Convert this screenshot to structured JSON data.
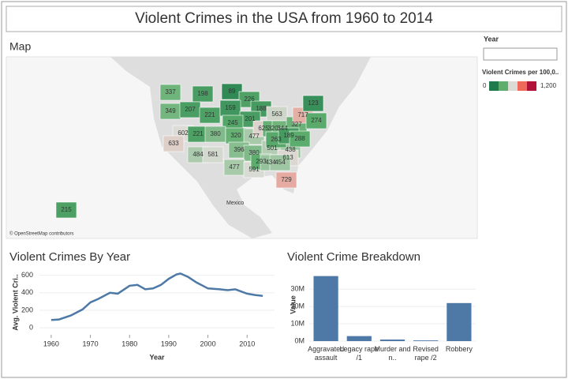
{
  "title": "Violent Crimes in the USA from 1960 to 2014",
  "map": {
    "title": "Map",
    "credit": "© OpenStreetMap contributors",
    "place_label": "Mexico",
    "state_values": [
      337,
      198,
      89,
      226,
      188,
      349,
      207,
      221,
      159,
      201,
      563,
      245,
      602,
      221,
      380,
      320,
      477,
      633,
      484,
      581,
      396,
      380,
      501,
      438,
      477,
      591,
      613,
      293,
      434,
      454,
      729,
      625,
      320,
      344,
      327,
      263,
      189,
      717,
      123,
      274,
      288,
      215
    ]
  },
  "filter": {
    "label": "Year"
  },
  "legend": {
    "title": "Violent Crimes per 100,0..",
    "min": 0,
    "max": {
      "value": 1200,
      "label": "1,200"
    },
    "colors": [
      "#1d7b4c",
      "#5fae6e",
      "#dcdcd6",
      "#f06a5c",
      "#b1123a"
    ]
  },
  "chart_data": [
    {
      "type": "line",
      "title": "Violent Crimes By Year",
      "x_label": "Year",
      "y_label": "Avg. Violent Cri..",
      "x": [
        1960,
        1962,
        1965,
        1968,
        1970,
        1972,
        1975,
        1977,
        1980,
        1982,
        1984,
        1986,
        1988,
        1990,
        1992,
        1993,
        1995,
        1997,
        2000,
        2003,
        2005,
        2007,
        2010,
        2012,
        2014
      ],
      "values": [
        90,
        95,
        140,
        210,
        290,
        330,
        400,
        390,
        480,
        490,
        440,
        450,
        490,
        560,
        610,
        620,
        580,
        520,
        450,
        440,
        430,
        440,
        390,
        375,
        365
      ],
      "color": "#4e79a7",
      "xlim": [
        1957,
        2017
      ],
      "xticks": [
        1960,
        1970,
        1980,
        1990,
        2000,
        2010
      ],
      "ylim": [
        -80,
        660
      ],
      "yticks": [
        0,
        200,
        400,
        600
      ],
      "grid": true
    },
    {
      "type": "bar",
      "title": "Violent Crime Breakdown",
      "y_label": "Value",
      "categories": [
        "Aggravated assault",
        "Legacy rape /1",
        "Murder and n..",
        "Revised rape /2",
        "Robbery"
      ],
      "values": [
        37600000,
        2900000,
        900000,
        400000,
        22000000
      ],
      "color": "#4e79a7",
      "ylim": [
        0,
        42000000
      ],
      "yticks": [
        {
          "value": 0,
          "label": "0M"
        },
        {
          "value": 10000000,
          "label": "10M"
        },
        {
          "value": 20000000,
          "label": "20M"
        },
        {
          "value": 30000000,
          "label": "30M"
        }
      ],
      "grid": true
    }
  ]
}
